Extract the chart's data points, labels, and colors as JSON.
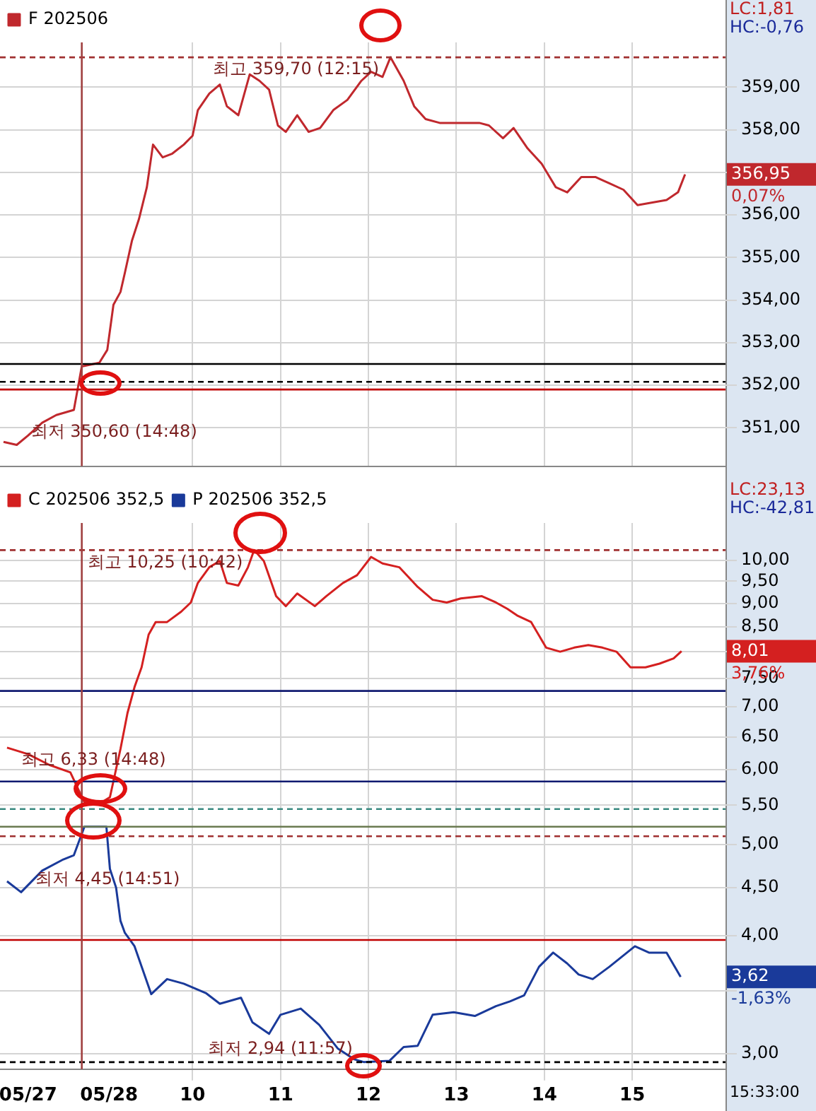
{
  "chart_data": [
    {
      "type": "line",
      "xlim": [
        7.81,
        16.06
      ],
      "ylim": [
        350.1,
        360.05
      ],
      "xticks": [
        10,
        11,
        12,
        13,
        14,
        15
      ],
      "yticks": [
        {
          "value": 351,
          "label": "351,00"
        },
        {
          "value": 352,
          "label": "352,00"
        },
        {
          "value": 353,
          "label": "353,00"
        },
        {
          "value": 354,
          "label": "354,00"
        },
        {
          "value": 355,
          "label": "355,00"
        },
        {
          "value": 356,
          "label": "356,00"
        },
        {
          "value": 357,
          "label": null
        },
        {
          "value": 358,
          "label": "358,00"
        },
        {
          "value": 359,
          "label": "359,00"
        }
      ],
      "tick_labels": "y",
      "grid": true,
      "legend": "top left",
      "series": [
        {
          "name": "F 202506",
          "color": "#c0282d",
          "x": [
            7.85,
            8.0,
            8.13,
            8.29,
            8.45,
            8.65,
            8.74,
            8.94,
            9.03,
            9.1,
            9.18,
            9.23,
            9.31,
            9.39,
            9.48,
            9.55,
            9.66,
            9.77,
            9.9,
            10.0,
            10.06,
            10.19,
            10.31,
            10.39,
            10.52,
            10.65,
            10.76,
            10.87,
            10.97,
            11.06,
            11.19,
            11.32,
            11.45,
            11.6,
            11.76,
            11.92,
            12.03,
            12.16,
            12.25,
            12.4,
            12.52,
            12.65,
            12.81,
            12.94,
            13.26,
            13.37,
            13.53,
            13.65,
            13.81,
            13.97,
            14.13,
            14.26,
            14.42,
            14.58,
            14.74,
            14.9,
            15.06,
            15.23,
            15.39,
            15.52,
            15.6
          ],
          "values": [
            350.67,
            350.6,
            350.82,
            351.12,
            351.3,
            351.42,
            352.44,
            352.53,
            352.83,
            353.89,
            354.19,
            354.64,
            355.39,
            355.9,
            356.65,
            357.65,
            357.35,
            357.44,
            357.65,
            357.86,
            358.46,
            358.85,
            359.06,
            358.55,
            358.34,
            359.3,
            359.15,
            358.94,
            358.1,
            357.95,
            358.34,
            357.95,
            358.04,
            358.46,
            358.7,
            359.15,
            359.36,
            359.24,
            359.7,
            359.15,
            358.55,
            358.25,
            358.16,
            358.16,
            358.16,
            358.1,
            357.8,
            358.04,
            357.56,
            357.2,
            356.65,
            356.53,
            356.89,
            356.89,
            356.74,
            356.59,
            356.23,
            356.29,
            356.35,
            356.53,
            356.95
          ]
        }
      ],
      "ref_lines": [
        {
          "axis": "y",
          "value": 359.7,
          "color": "#a03030",
          "line_style": "dashed"
        },
        {
          "axis": "y",
          "value": 352.5,
          "color": "#000000",
          "line_style": "solid"
        },
        {
          "axis": "y",
          "value": 352.08,
          "color": "#000000",
          "line_style": "dashed"
        },
        {
          "axis": "y",
          "value": 351.9,
          "color": "#c00000",
          "line_style": "solid"
        },
        {
          "axis": "x",
          "value": 8.74,
          "color": "#a04040",
          "line_style": "solid"
        }
      ],
      "annotations": [
        {
          "text": "최고 359,70 (12:15)",
          "x": 12.25,
          "y": 359.7
        },
        {
          "text": "최저 350,60 (14:48)",
          "x": 8.0,
          "y": 350.6
        },
        "LC:1,81",
        "HC:-0,76",
        "356,95",
        "0,07%"
      ]
    },
    {
      "type": "line",
      "log": true,
      "xlim": [
        7.81,
        16.06
      ],
      "ylim": [
        2.89,
        10.95
      ],
      "xticks": [
        {
          "value": 8.13,
          "label": "05/27"
        },
        {
          "value": 9.05,
          "label": "05/28"
        },
        10,
        11,
        12,
        13,
        14,
        15
      ],
      "yticks": [
        {
          "value": 3,
          "label": "3,00"
        },
        {
          "value": 3.5,
          "label": null
        },
        {
          "value": 4,
          "label": "4,00"
        },
        {
          "value": 4.5,
          "label": "4,50"
        },
        {
          "value": 5,
          "label": "5,00"
        },
        {
          "value": 5.5,
          "label": "5,50"
        },
        {
          "value": 6,
          "label": "6,00"
        },
        {
          "value": 6.5,
          "label": "6,50"
        },
        {
          "value": 7,
          "label": "7,00"
        },
        {
          "value": 7.5,
          "label": "7,50"
        },
        {
          "value": 8,
          "label": null
        },
        {
          "value": 8.5,
          "label": "8,50"
        },
        {
          "value": 9,
          "label": "9,00"
        },
        {
          "value": 9.5,
          "label": "9,50"
        },
        {
          "value": 10,
          "label": "10,00"
        }
      ],
      "grid": true,
      "legend": "top left",
      "series": [
        {
          "name": "C 202506 352,5",
          "color": "#d42020",
          "x": [
            7.89,
            8.13,
            8.37,
            8.61,
            8.77,
            8.94,
            9.06,
            9.18,
            9.26,
            9.34,
            9.42,
            9.5,
            9.58,
            9.71,
            9.87,
            9.98,
            10.06,
            10.19,
            10.31,
            10.39,
            10.52,
            10.63,
            10.7,
            10.81,
            10.95,
            11.06,
            11.19,
            11.39,
            11.52,
            11.71,
            11.87,
            12.03,
            12.16,
            12.35,
            12.56,
            12.73,
            12.89,
            13.05,
            13.29,
            13.45,
            13.58,
            13.69,
            13.85,
            14.02,
            14.18,
            14.34,
            14.5,
            14.66,
            14.82,
            14.98,
            15.15,
            15.31,
            15.47,
            15.56
          ],
          "values": [
            6.33,
            6.23,
            6.07,
            5.96,
            5.54,
            5.52,
            5.61,
            6.31,
            6.89,
            7.34,
            7.7,
            8.34,
            8.6,
            8.6,
            8.82,
            9.02,
            9.46,
            9.83,
            9.98,
            9.46,
            9.4,
            9.83,
            10.25,
            9.98,
            9.16,
            8.94,
            9.22,
            8.94,
            9.16,
            9.46,
            9.64,
            10.08,
            9.92,
            9.83,
            9.37,
            9.08,
            9.02,
            9.11,
            9.16,
            9.02,
            8.88,
            8.74,
            8.6,
            8.08,
            8.0,
            8.08,
            8.13,
            8.08,
            8.0,
            7.7,
            7.7,
            7.77,
            7.87,
            8.01
          ]
        },
        {
          "name": "P 202506 352,5",
          "color": "#1a3a9a",
          "x": [
            7.89,
            8.05,
            8.29,
            8.53,
            8.65,
            8.77,
            9.02,
            9.06,
            9.13,
            9.18,
            9.23,
            9.29,
            9.34,
            9.53,
            9.71,
            9.9,
            10.15,
            10.31,
            10.55,
            10.68,
            10.87,
            11.0,
            11.23,
            11.44,
            11.65,
            11.84,
            11.95,
            12.24,
            12.4,
            12.56,
            12.73,
            12.97,
            13.21,
            13.45,
            13.61,
            13.77,
            13.94,
            14.1,
            14.26,
            14.39,
            14.55,
            14.74,
            15.03,
            15.19,
            15.39,
            15.55
          ],
          "values": [
            4.57,
            4.45,
            4.69,
            4.82,
            4.87,
            5.22,
            5.22,
            4.71,
            4.5,
            4.15,
            4.03,
            3.96,
            3.9,
            3.47,
            3.6,
            3.56,
            3.48,
            3.39,
            3.44,
            3.24,
            3.15,
            3.3,
            3.35,
            3.22,
            3.04,
            2.96,
            2.94,
            2.95,
            3.05,
            3.06,
            3.3,
            3.32,
            3.29,
            3.37,
            3.41,
            3.46,
            3.71,
            3.84,
            3.74,
            3.64,
            3.6,
            3.71,
            3.9,
            3.84,
            3.84,
            3.62
          ]
        }
      ],
      "ref_lines": [
        {
          "axis": "y",
          "value": 10.25,
          "color": "#a03030",
          "line_style": "dashed"
        },
        {
          "axis": "y",
          "value": 7.27,
          "color": "#101a70",
          "line_style": "solid"
        },
        {
          "axis": "y",
          "value": 5.83,
          "color": "#101a70",
          "line_style": "solid"
        },
        {
          "axis": "y",
          "value": 5.45,
          "color": "#3a8a80",
          "line_style": "dashed"
        },
        {
          "axis": "y",
          "value": 5.22,
          "color": "#6a7a50",
          "line_style": "solid"
        },
        {
          "axis": "y",
          "value": 5.1,
          "color": "#a03030",
          "line_style": "dashed"
        },
        {
          "axis": "y",
          "value": 3.96,
          "color": "#c00000",
          "line_style": "solid"
        },
        {
          "axis": "y",
          "value": 2.94,
          "color": "#000000",
          "line_style": "dashed"
        },
        {
          "axis": "x",
          "value": 8.74,
          "color": "#a04040",
          "line_style": "solid"
        }
      ],
      "annotations": [
        {
          "text": "최고 10,25 (10:42)",
          "x": 10.7,
          "y": 10.25
        },
        {
          "text": "최고 6,33 (14:48)",
          "x": 7.89,
          "y": 6.33
        },
        {
          "text": "최저 4,45 (14:51)",
          "x": 8.05,
          "y": 4.45
        },
        {
          "text": "최저 2,94 (11:57)",
          "x": 11.95,
          "y": 2.94
        },
        "LC:23,13",
        "HC:-42,81",
        "8,01",
        "3,76%",
        "3,62",
        "-1,63%",
        "15:33:00"
      ]
    }
  ]
}
